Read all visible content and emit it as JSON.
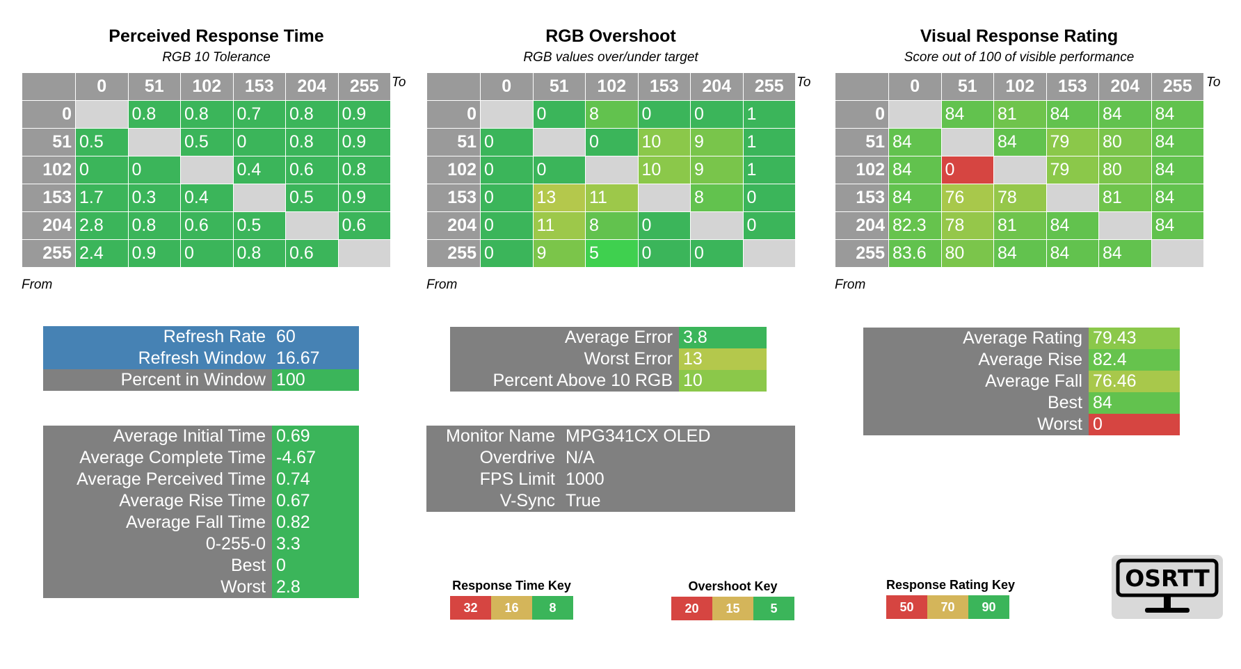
{
  "chart_data": [
    {
      "type": "heatmap",
      "title": "Perceived Response Time",
      "subtitle": "RGB 10 Tolerance",
      "x_label": "To",
      "y_label": "From",
      "levels": [
        "0",
        "51",
        "102",
        "153",
        "204",
        "255"
      ],
      "values": [
        [
          null,
          "0.8",
          "0.8",
          "0.7",
          "0.8",
          "0.9"
        ],
        [
          "0.5",
          null,
          "0.5",
          "0",
          "0.8",
          "0.9"
        ],
        [
          "0",
          "0",
          null,
          "0.4",
          "0.6",
          "0.8"
        ],
        [
          "1.7",
          "0.3",
          "0.4",
          null,
          "0.5",
          "0.9"
        ],
        [
          "2.8",
          "0.8",
          "0.6",
          "0.5",
          null,
          "0.6"
        ],
        [
          "2.4",
          "0.9",
          "0",
          "0.8",
          "0.6",
          null
        ]
      ],
      "colors": [
        [
          null,
          "#3bb55a",
          "#3bb55a",
          "#3bb55a",
          "#3bb55a",
          "#3bb55a"
        ],
        [
          "#3bb55a",
          null,
          "#3bb55a",
          "#3bb55a",
          "#3bb55a",
          "#3bb55a"
        ],
        [
          "#3bb55a",
          "#3bb55a",
          null,
          "#3bb55a",
          "#3bb55a",
          "#3bb55a"
        ],
        [
          "#3bb55a",
          "#3bb55a",
          "#3bb55a",
          null,
          "#3bb55a",
          "#3bb55a"
        ],
        [
          "#3bb55a",
          "#3bb55a",
          "#3bb55a",
          "#3bb55a",
          null,
          "#3bb55a"
        ],
        [
          "#3bb55a",
          "#3bb55a",
          "#3bb55a",
          "#3bb55a",
          "#3bb55a",
          null
        ]
      ]
    },
    {
      "type": "heatmap",
      "title": "RGB Overshoot",
      "subtitle": "RGB values over/under target",
      "x_label": "To",
      "y_label": "From",
      "levels": [
        "0",
        "51",
        "102",
        "153",
        "204",
        "255"
      ],
      "values": [
        [
          null,
          "0",
          "8",
          "0",
          "0",
          "1"
        ],
        [
          "0",
          null,
          "0",
          "10",
          "9",
          "1"
        ],
        [
          "0",
          "0",
          null,
          "10",
          "9",
          "1"
        ],
        [
          "0",
          "13",
          "11",
          null,
          "8",
          "0"
        ],
        [
          "0",
          "11",
          "8",
          "0",
          null,
          "0"
        ],
        [
          "0",
          "9",
          "5",
          "0",
          "0",
          null
        ]
      ],
      "colors": [
        [
          null,
          "#3bb55a",
          "#62c24e",
          "#3bb55a",
          "#3bb55a",
          "#3bb55a"
        ],
        [
          "#3bb55a",
          null,
          "#3bb55a",
          "#8bc84a",
          "#79c54b",
          "#3bb55a"
        ],
        [
          "#3bb55a",
          "#3bb55a",
          null,
          "#8bc84a",
          "#79c54b",
          "#3bb55a"
        ],
        [
          "#3bb55a",
          "#b4c84c",
          "#9dc84a",
          null,
          "#62c24e",
          "#3bb55a"
        ],
        [
          "#3bb55a",
          "#9dc84a",
          "#62c24e",
          "#3bb55a",
          null,
          "#3bb55a"
        ],
        [
          "#3bb55a",
          "#7bc54a",
          "#3fd04f",
          "#3bb55a",
          "#3bb55a",
          null
        ]
      ]
    },
    {
      "type": "heatmap",
      "title": "Visual Response Rating",
      "subtitle": "Score out of 100 of visible performance",
      "x_label": "To",
      "y_label": "From",
      "levels": [
        "0",
        "51",
        "102",
        "153",
        "204",
        "255"
      ],
      "values": [
        [
          null,
          "84",
          "81",
          "84",
          "84",
          "84"
        ],
        [
          "84",
          null,
          "84",
          "79",
          "80",
          "84"
        ],
        [
          "84",
          "0",
          null,
          "79",
          "80",
          "84"
        ],
        [
          "84",
          "76",
          "78",
          null,
          "81",
          "84"
        ],
        [
          "82.3",
          "78",
          "81",
          "84",
          null,
          "84"
        ],
        [
          "83.6",
          "80",
          "84",
          "84",
          "84",
          null
        ]
      ],
      "colors": [
        [
          null,
          "#62c24e",
          "#6fc44c",
          "#62c24e",
          "#62c24e",
          "#62c24e"
        ],
        [
          "#62c24e",
          null,
          "#62c24e",
          "#8bc84a",
          "#7bc54b",
          "#62c24e"
        ],
        [
          "#62c24e",
          "#d64541",
          null,
          "#8bc84a",
          "#7bc54b",
          "#62c24e"
        ],
        [
          "#62c24e",
          "#a8c84b",
          "#95c74a",
          null,
          "#6fc44c",
          "#62c24e"
        ],
        [
          "#66c34d",
          "#95c74a",
          "#6fc44c",
          "#62c24e",
          null,
          "#62c24e"
        ],
        [
          "#62c24e",
          "#7bc54b",
          "#62c24e",
          "#62c24e",
          "#62c24e",
          null
        ]
      ]
    }
  ],
  "refresh": {
    "rows": [
      {
        "label": "Refresh Rate",
        "value": "60",
        "bg": "#4682b4",
        "vbg": "#4682b4"
      },
      {
        "label": "Refresh Window",
        "value": "16.67",
        "bg": "#4682b4",
        "vbg": "#4682b4"
      },
      {
        "label": "Percent in Window",
        "value": "100",
        "bg": "#808080",
        "vbg": "#3bb55a"
      }
    ]
  },
  "timing": {
    "rows": [
      {
        "label": "Average Initial Time",
        "value": "0.69"
      },
      {
        "label": "Average Complete Time",
        "value": "-4.67"
      },
      {
        "label": "Average Perceived Time",
        "value": "0.74"
      },
      {
        "label": "Average Rise Time",
        "value": "0.67"
      },
      {
        "label": "Average Fall Time",
        "value": "0.82"
      },
      {
        "label": "0-255-0",
        "value": "3.3"
      },
      {
        "label": "Best",
        "value": "0"
      },
      {
        "label": "Worst",
        "value": "2.8"
      }
    ],
    "vbg": "#3bb55a"
  },
  "error": {
    "rows": [
      {
        "label": "Average Error",
        "value": "3.8",
        "vbg": "#3bb55a"
      },
      {
        "label": "Worst Error",
        "value": "13",
        "vbg": "#b4c84c"
      },
      {
        "label": "Percent Above 10 RGB",
        "value": "10",
        "vbg": "#8bc84a"
      }
    ]
  },
  "monitor": {
    "rows": [
      {
        "label": "Monitor Name",
        "value": "MPG341CX OLED"
      },
      {
        "label": "Overdrive",
        "value": "N/A"
      },
      {
        "label": "FPS Limit",
        "value": "1000"
      },
      {
        "label": "V-Sync",
        "value": "True"
      }
    ]
  },
  "rating": {
    "rows": [
      {
        "label": "Average Rating",
        "value": "79.43",
        "vbg": "#8bc84a"
      },
      {
        "label": "Average Rise",
        "value": "82.4",
        "vbg": "#66c34d"
      },
      {
        "label": "Average Fall",
        "value": "76.46",
        "vbg": "#a8c84b"
      },
      {
        "label": "Best",
        "value": "84",
        "vbg": "#62c24e"
      },
      {
        "label": "Worst",
        "value": "0",
        "vbg": "#d64541"
      }
    ]
  },
  "keys": [
    {
      "title": "Response Time Key",
      "cells": [
        {
          "v": "32",
          "c": "#d64541"
        },
        {
          "v": "16",
          "c": "#d4b55a"
        },
        {
          "v": "8",
          "c": "#3bb55a"
        }
      ]
    },
    {
      "title": "Overshoot Key",
      "cells": [
        {
          "v": "20",
          "c": "#d64541"
        },
        {
          "v": "15",
          "c": "#d4b55a"
        },
        {
          "v": "5",
          "c": "#3bb55a"
        }
      ]
    },
    {
      "title": "Response Rating Key",
      "cells": [
        {
          "v": "50",
          "c": "#d64541"
        },
        {
          "v": "70",
          "c": "#d4b55a"
        },
        {
          "v": "90",
          "c": "#3bb55a"
        }
      ]
    }
  ],
  "logo": {
    "text": "OSRTT"
  }
}
